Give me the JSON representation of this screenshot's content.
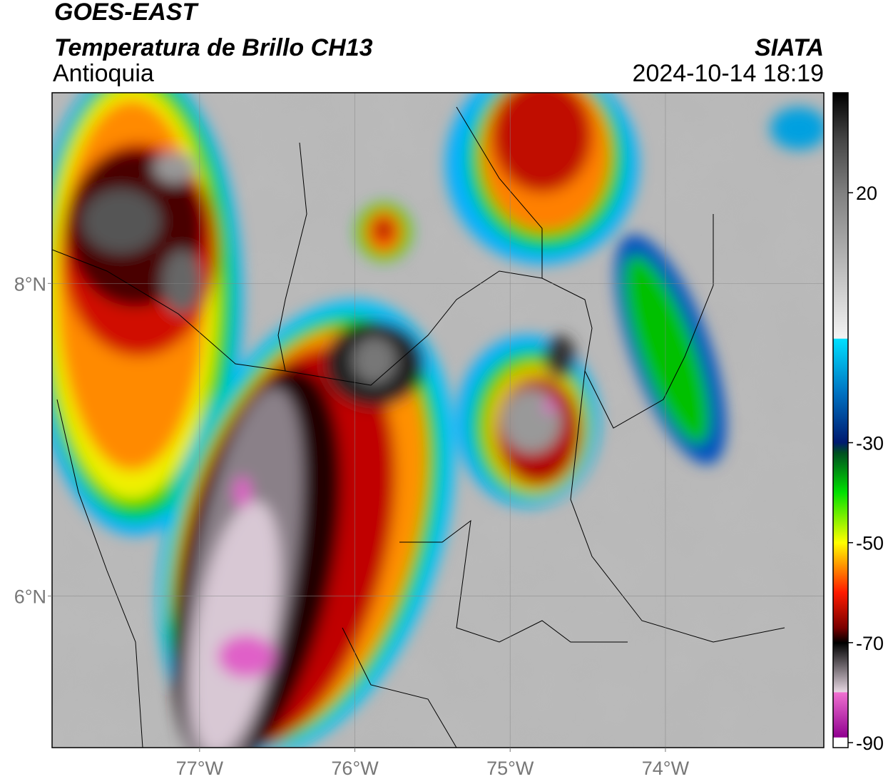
{
  "header": {
    "title": "GOES-EAST",
    "subtitle": "Temperatura de Brillo CH13",
    "region": "Antioquia",
    "source": "SIATA",
    "timestamp": "2024-10-14 18:19"
  },
  "map": {
    "xlim": [
      -77.95,
      -72.98
    ],
    "ylim": [
      5.03,
      9.22
    ],
    "xticks": [
      {
        "value": -77,
        "label": "77°W"
      },
      {
        "value": -76,
        "label": "76°W"
      },
      {
        "value": -75,
        "label": "75°W"
      },
      {
        "value": -74,
        "label": "74°W"
      }
    ],
    "yticks": [
      {
        "value": 6,
        "label": "6°N"
      },
      {
        "value": 8,
        "label": "8°N"
      }
    ]
  },
  "colorbar": {
    "lim": [
      -91,
      40
    ],
    "ticks": [
      20,
      -30,
      -50,
      -70,
      -90
    ]
  }
}
